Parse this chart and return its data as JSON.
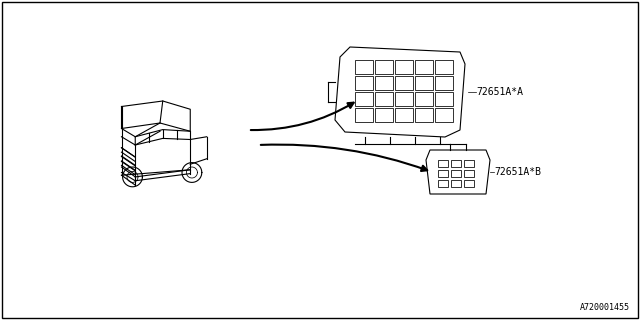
{
  "title": "",
  "background_color": "#ffffff",
  "border_color": "#000000",
  "line_color": "#000000",
  "part_label_A": "72651A*A",
  "part_label_B": "72651A*B",
  "diagram_id": "A720001455",
  "border_linewidth": 1.0,
  "line_linewidth": 0.8,
  "thin_linewidth": 0.5,
  "arrow_linewidth": 1.5,
  "font_size_label": 7,
  "font_size_id": 6
}
